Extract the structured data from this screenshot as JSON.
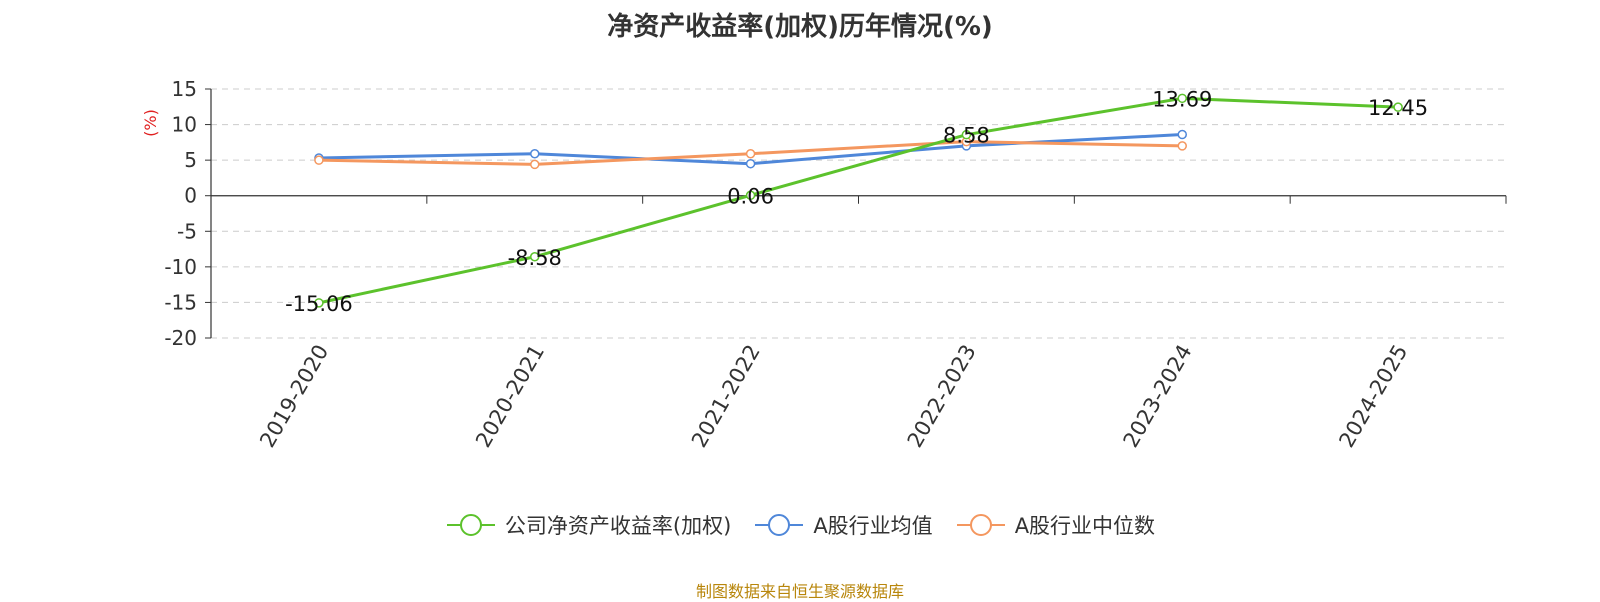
{
  "chart_data": {
    "type": "line",
    "title": "净资产收益率(加权)历年情况(%)",
    "ylabel": "(%)",
    "xlabel": "",
    "categories": [
      "2019-2020",
      "2020-2021",
      "2021-2022",
      "2022-2023",
      "2023-2024",
      "2024-2025"
    ],
    "ylim": [
      -20,
      15
    ],
    "yticks": [
      15,
      10,
      5,
      0,
      -5,
      -10,
      -15,
      -20
    ],
    "grid": true,
    "legend_position": "bottom",
    "series": [
      {
        "name": "公司净资产收益率(加权)",
        "color": "#5cc22c",
        "values": [
          -15.06,
          -8.58,
          0.06,
          8.58,
          13.69,
          12.45
        ],
        "labels": [
          "-15.06",
          "-8.58",
          "0.06",
          "8.58",
          "13.69",
          "12.45"
        ]
      },
      {
        "name": "A股行业均值",
        "color": "#4f87d9",
        "values": [
          5.3,
          5.9,
          4.5,
          7.0,
          8.6,
          null
        ]
      },
      {
        "name": "A股行业中位数",
        "color": "#f4975f",
        "values": [
          5.0,
          4.4,
          5.9,
          7.6,
          7.0,
          null
        ]
      }
    ]
  },
  "source": "制图数据来自恒生聚源数据库"
}
